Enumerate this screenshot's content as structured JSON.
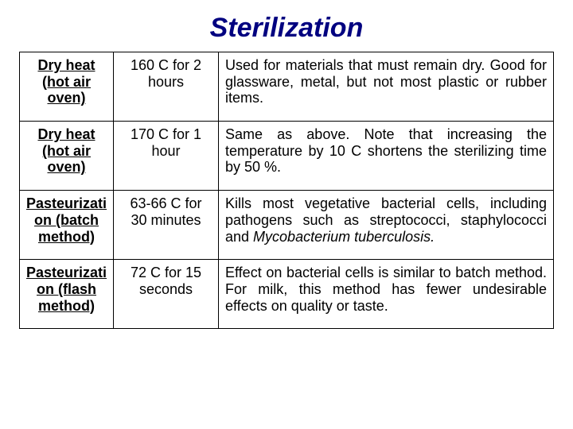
{
  "title": "Sterilization",
  "rows": [
    {
      "method": "Dry heat (hot air oven)",
      "condition": "160 C for 2 hours",
      "description": "Used for materials that must remain dry. Good for glassware, metal, but not most plastic or rubber items."
    },
    {
      "method": "Dry heat (hot air oven)",
      "condition": "170 C for 1 hour",
      "description": "Same as above. Note that increasing the temperature by 10 C shortens the sterilizing time by 50 %."
    },
    {
      "method": "Pasteurizati on (batch method)",
      "condition": "63-66 C for 30 minutes",
      "description_html": "Kills most vegetative bacterial cells, including pathogens such as streptococci, staphylococci and <span class=\"italic\">Mycobacterium tuberculosis.</span>"
    },
    {
      "method": "Pasteurizati on (flash method)",
      "condition": "72 C for 15 seconds",
      "description": "Effect on bacterial cells is similar to batch method. For milk, this method has fewer undesirable effects on quality or taste."
    }
  ]
}
